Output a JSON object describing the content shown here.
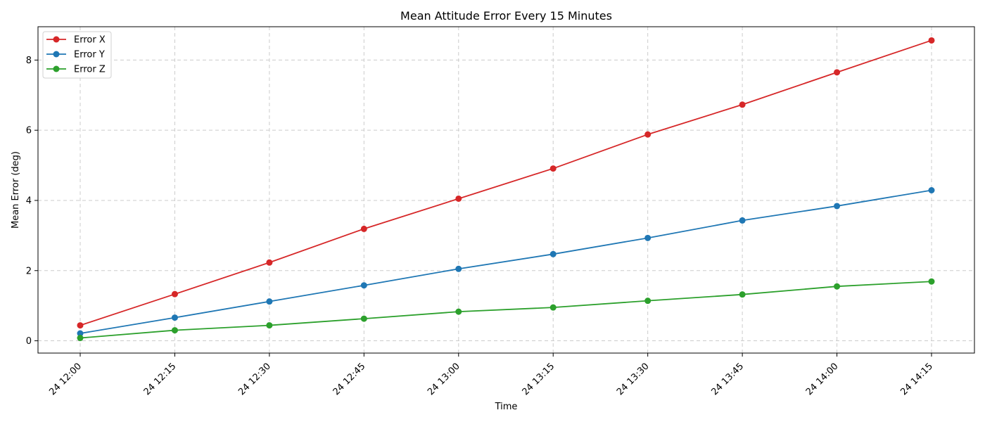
{
  "chart_data": {
    "type": "line",
    "title": "Mean Attitude Error Every 15 Minutes",
    "xlabel": "Time",
    "ylabel": "Mean Error (deg)",
    "x": [
      "24 12:00",
      "24 12:15",
      "24 12:30",
      "24 12:45",
      "24 13:00",
      "24 13:15",
      "24 13:30",
      "24 13:45",
      "24 14:00",
      "24 14:15"
    ],
    "ylim": [
      -0.35,
      8.95
    ],
    "yticks": [
      0,
      2,
      4,
      6,
      8
    ],
    "ytick_labels": [
      "0",
      "2",
      "4",
      "6",
      "8"
    ],
    "grid": true,
    "legend_position": "top-left",
    "series": [
      {
        "name": "Error X",
        "color": "#d62728",
        "values": [
          0.44,
          1.33,
          2.23,
          3.19,
          4.05,
          4.91,
          5.88,
          6.73,
          7.65,
          8.56
        ]
      },
      {
        "name": "Error Y",
        "color": "#1f77b4",
        "values": [
          0.21,
          0.66,
          1.12,
          1.58,
          2.05,
          2.47,
          2.93,
          3.43,
          3.84,
          4.29
        ]
      },
      {
        "name": "Error Z",
        "color": "#2ca02c",
        "values": [
          0.08,
          0.3,
          0.44,
          0.63,
          0.83,
          0.95,
          1.14,
          1.32,
          1.55,
          1.69
        ]
      }
    ]
  }
}
